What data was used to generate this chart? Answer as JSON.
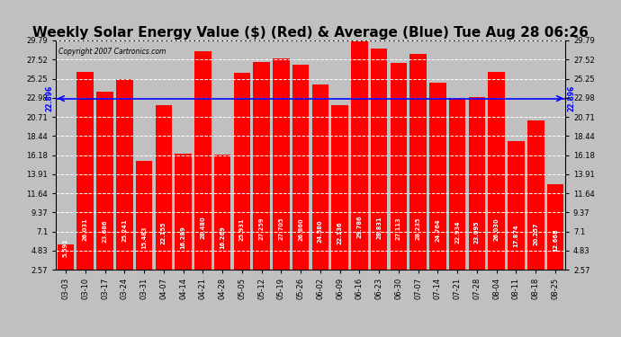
{
  "title": "Weekly Solar Energy Value ($) (Red) & Average (Blue) Tue Aug 28 06:26",
  "copyright": "Copyright 2007 Cartronics.com",
  "categories": [
    "03-03",
    "03-10",
    "03-17",
    "03-24",
    "03-31",
    "04-07",
    "04-14",
    "04-21",
    "04-28",
    "05-05",
    "05-12",
    "05-19",
    "05-26",
    "06-02",
    "06-09",
    "06-16",
    "06-23",
    "06-30",
    "07-07",
    "07-14",
    "07-21",
    "07-28",
    "08-04",
    "08-11",
    "08-18",
    "08-25"
  ],
  "values": [
    5.591,
    26.031,
    23.686,
    25.241,
    15.483,
    22.155,
    16.289,
    28.48,
    16.269,
    25.931,
    27.259,
    27.705,
    26.86,
    24.58,
    22.136,
    29.786,
    28.831,
    27.113,
    28.235,
    24.764,
    22.934,
    23.095,
    26.03,
    17.874,
    20.257,
    12.668
  ],
  "bar_values_labels": [
    "5.591",
    "26.031",
    "23.686",
    "25.241",
    "15.483",
    "22.155",
    "16.289",
    "28.480",
    "16.269",
    "25.931",
    "27.259",
    "27.705",
    "26.860",
    "24.580",
    "22.136",
    "29.786",
    "28.831",
    "27.113",
    "28.235",
    "24.764",
    "22.934",
    "23.095",
    "26.030",
    "17.874",
    "20.257",
    "12.668"
  ],
  "average": 22.896,
  "bar_color": "#ff0000",
  "avg_line_color": "#0000ff",
  "background_color": "#c0c0c0",
  "plot_bg_color": "#c0c0c0",
  "yticks": [
    2.57,
    4.83,
    7.1,
    9.37,
    11.64,
    13.91,
    16.18,
    18.44,
    20.71,
    22.98,
    25.25,
    27.52,
    29.79
  ],
  "ymin": 2.57,
  "ymax": 29.79,
  "title_fontsize": 11,
  "grid_color": "#ffffff",
  "avg_label": "22.896"
}
